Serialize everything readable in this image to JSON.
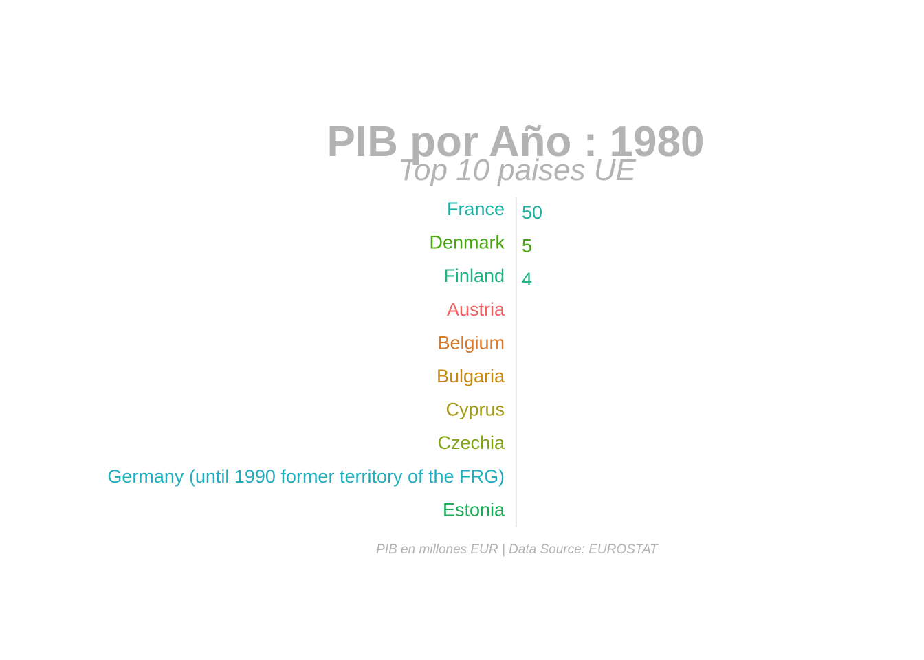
{
  "chart_data": {
    "type": "bar",
    "title": "PIB por Año : 1980",
    "subtitle": "Top 10 paises UE",
    "caption": "PIB en millones EUR | Data Source: EUROSTAT",
    "categories": [
      "France",
      "Denmark",
      "Finland",
      "Austria",
      "Belgium",
      "Bulgaria",
      "Cyprus",
      "Czechia",
      "Germany (until 1990 former territory of the FRG)",
      "Estonia"
    ],
    "values": [
      50,
      5,
      4,
      null,
      null,
      null,
      null,
      null,
      null,
      null
    ],
    "value_labels": [
      "50",
      "5",
      "4",
      "",
      "",
      "",
      "",
      "",
      "",
      ""
    ],
    "colors": [
      "#1ab3a3",
      "#46a60e",
      "#1fb084",
      "#ef6363",
      "#d97a2b",
      "#c8890f",
      "#a39a12",
      "#82a512",
      "#20aec1",
      "#1caa55"
    ],
    "axis_color": "#d9d9d9",
    "text_color": "#b3b3b3",
    "grid": false,
    "legend": "none"
  }
}
